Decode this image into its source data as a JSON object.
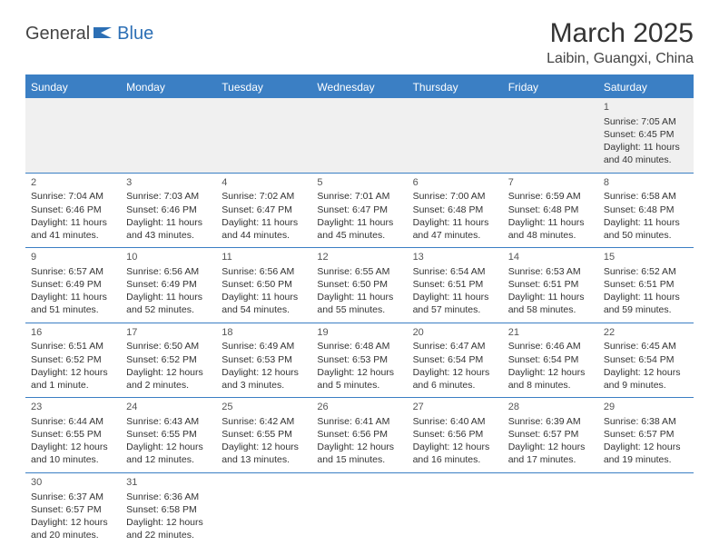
{
  "logo": {
    "part1": "General",
    "part2": "Blue"
  },
  "title": "March 2025",
  "location": "Laibin, Guangxi, China",
  "colors": {
    "header_bg": "#3b7fc4",
    "header_text": "#ffffff",
    "border": "#3b7fc4",
    "empty_bg": "#f0f0f0",
    "logo_accent": "#2c6fb5"
  },
  "day_headers": [
    "Sunday",
    "Monday",
    "Tuesday",
    "Wednesday",
    "Thursday",
    "Friday",
    "Saturday"
  ],
  "weeks": [
    [
      null,
      null,
      null,
      null,
      null,
      null,
      {
        "n": "1",
        "sr": "Sunrise: 7:05 AM",
        "ss": "Sunset: 6:45 PM",
        "dl1": "Daylight: 11 hours",
        "dl2": "and 40 minutes."
      }
    ],
    [
      {
        "n": "2",
        "sr": "Sunrise: 7:04 AM",
        "ss": "Sunset: 6:46 PM",
        "dl1": "Daylight: 11 hours",
        "dl2": "and 41 minutes."
      },
      {
        "n": "3",
        "sr": "Sunrise: 7:03 AM",
        "ss": "Sunset: 6:46 PM",
        "dl1": "Daylight: 11 hours",
        "dl2": "and 43 minutes."
      },
      {
        "n": "4",
        "sr": "Sunrise: 7:02 AM",
        "ss": "Sunset: 6:47 PM",
        "dl1": "Daylight: 11 hours",
        "dl2": "and 44 minutes."
      },
      {
        "n": "5",
        "sr": "Sunrise: 7:01 AM",
        "ss": "Sunset: 6:47 PM",
        "dl1": "Daylight: 11 hours",
        "dl2": "and 45 minutes."
      },
      {
        "n": "6",
        "sr": "Sunrise: 7:00 AM",
        "ss": "Sunset: 6:48 PM",
        "dl1": "Daylight: 11 hours",
        "dl2": "and 47 minutes."
      },
      {
        "n": "7",
        "sr": "Sunrise: 6:59 AM",
        "ss": "Sunset: 6:48 PM",
        "dl1": "Daylight: 11 hours",
        "dl2": "and 48 minutes."
      },
      {
        "n": "8",
        "sr": "Sunrise: 6:58 AM",
        "ss": "Sunset: 6:48 PM",
        "dl1": "Daylight: 11 hours",
        "dl2": "and 50 minutes."
      }
    ],
    [
      {
        "n": "9",
        "sr": "Sunrise: 6:57 AM",
        "ss": "Sunset: 6:49 PM",
        "dl1": "Daylight: 11 hours",
        "dl2": "and 51 minutes."
      },
      {
        "n": "10",
        "sr": "Sunrise: 6:56 AM",
        "ss": "Sunset: 6:49 PM",
        "dl1": "Daylight: 11 hours",
        "dl2": "and 52 minutes."
      },
      {
        "n": "11",
        "sr": "Sunrise: 6:56 AM",
        "ss": "Sunset: 6:50 PM",
        "dl1": "Daylight: 11 hours",
        "dl2": "and 54 minutes."
      },
      {
        "n": "12",
        "sr": "Sunrise: 6:55 AM",
        "ss": "Sunset: 6:50 PM",
        "dl1": "Daylight: 11 hours",
        "dl2": "and 55 minutes."
      },
      {
        "n": "13",
        "sr": "Sunrise: 6:54 AM",
        "ss": "Sunset: 6:51 PM",
        "dl1": "Daylight: 11 hours",
        "dl2": "and 57 minutes."
      },
      {
        "n": "14",
        "sr": "Sunrise: 6:53 AM",
        "ss": "Sunset: 6:51 PM",
        "dl1": "Daylight: 11 hours",
        "dl2": "and 58 minutes."
      },
      {
        "n": "15",
        "sr": "Sunrise: 6:52 AM",
        "ss": "Sunset: 6:51 PM",
        "dl1": "Daylight: 11 hours",
        "dl2": "and 59 minutes."
      }
    ],
    [
      {
        "n": "16",
        "sr": "Sunrise: 6:51 AM",
        "ss": "Sunset: 6:52 PM",
        "dl1": "Daylight: 12 hours",
        "dl2": "and 1 minute."
      },
      {
        "n": "17",
        "sr": "Sunrise: 6:50 AM",
        "ss": "Sunset: 6:52 PM",
        "dl1": "Daylight: 12 hours",
        "dl2": "and 2 minutes."
      },
      {
        "n": "18",
        "sr": "Sunrise: 6:49 AM",
        "ss": "Sunset: 6:53 PM",
        "dl1": "Daylight: 12 hours",
        "dl2": "and 3 minutes."
      },
      {
        "n": "19",
        "sr": "Sunrise: 6:48 AM",
        "ss": "Sunset: 6:53 PM",
        "dl1": "Daylight: 12 hours",
        "dl2": "and 5 minutes."
      },
      {
        "n": "20",
        "sr": "Sunrise: 6:47 AM",
        "ss": "Sunset: 6:54 PM",
        "dl1": "Daylight: 12 hours",
        "dl2": "and 6 minutes."
      },
      {
        "n": "21",
        "sr": "Sunrise: 6:46 AM",
        "ss": "Sunset: 6:54 PM",
        "dl1": "Daylight: 12 hours",
        "dl2": "and 8 minutes."
      },
      {
        "n": "22",
        "sr": "Sunrise: 6:45 AM",
        "ss": "Sunset: 6:54 PM",
        "dl1": "Daylight: 12 hours",
        "dl2": "and 9 minutes."
      }
    ],
    [
      {
        "n": "23",
        "sr": "Sunrise: 6:44 AM",
        "ss": "Sunset: 6:55 PM",
        "dl1": "Daylight: 12 hours",
        "dl2": "and 10 minutes."
      },
      {
        "n": "24",
        "sr": "Sunrise: 6:43 AM",
        "ss": "Sunset: 6:55 PM",
        "dl1": "Daylight: 12 hours",
        "dl2": "and 12 minutes."
      },
      {
        "n": "25",
        "sr": "Sunrise: 6:42 AM",
        "ss": "Sunset: 6:55 PM",
        "dl1": "Daylight: 12 hours",
        "dl2": "and 13 minutes."
      },
      {
        "n": "26",
        "sr": "Sunrise: 6:41 AM",
        "ss": "Sunset: 6:56 PM",
        "dl1": "Daylight: 12 hours",
        "dl2": "and 15 minutes."
      },
      {
        "n": "27",
        "sr": "Sunrise: 6:40 AM",
        "ss": "Sunset: 6:56 PM",
        "dl1": "Daylight: 12 hours",
        "dl2": "and 16 minutes."
      },
      {
        "n": "28",
        "sr": "Sunrise: 6:39 AM",
        "ss": "Sunset: 6:57 PM",
        "dl1": "Daylight: 12 hours",
        "dl2": "and 17 minutes."
      },
      {
        "n": "29",
        "sr": "Sunrise: 6:38 AM",
        "ss": "Sunset: 6:57 PM",
        "dl1": "Daylight: 12 hours",
        "dl2": "and 19 minutes."
      }
    ],
    [
      {
        "n": "30",
        "sr": "Sunrise: 6:37 AM",
        "ss": "Sunset: 6:57 PM",
        "dl1": "Daylight: 12 hours",
        "dl2": "and 20 minutes."
      },
      {
        "n": "31",
        "sr": "Sunrise: 6:36 AM",
        "ss": "Sunset: 6:58 PM",
        "dl1": "Daylight: 12 hours",
        "dl2": "and 22 minutes."
      },
      null,
      null,
      null,
      null,
      null
    ]
  ]
}
